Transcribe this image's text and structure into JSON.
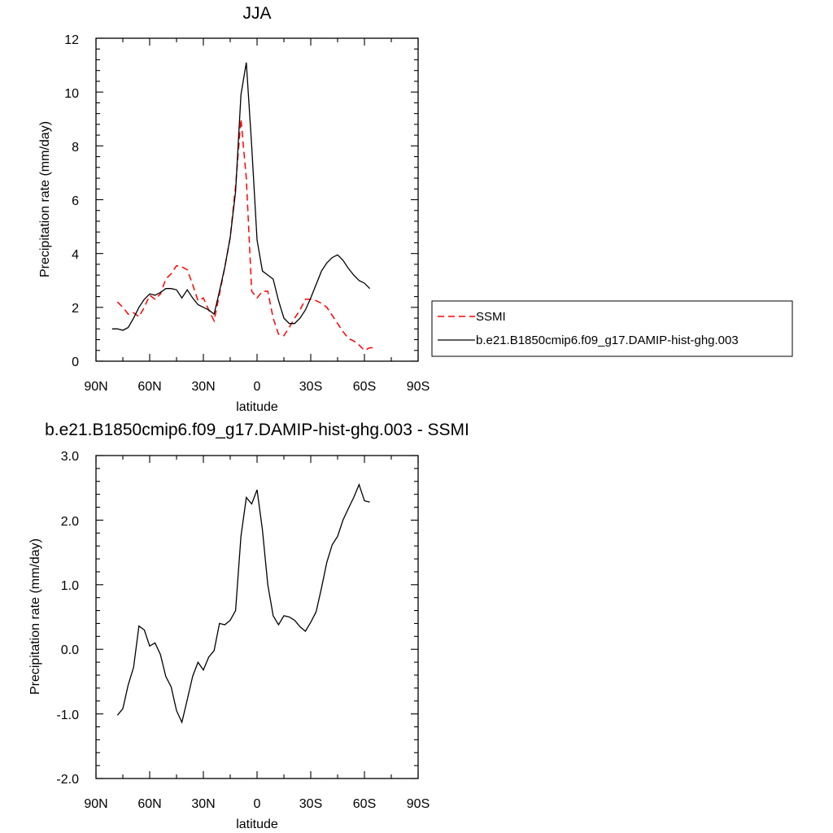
{
  "chart_data": [
    {
      "type": "line",
      "title": "JJA",
      "xlabel": "latitude",
      "ylabel": "Precipitation rate (mm/day)",
      "xlim": [
        90,
        -90
      ],
      "ylim": [
        0,
        12
      ],
      "x_ticks": [
        90,
        60,
        30,
        0,
        -30,
        -60,
        -90
      ],
      "x_tick_labels": [
        "90N",
        "60N",
        "30N",
        "0",
        "30S",
        "60S",
        "90S"
      ],
      "y_ticks": [
        0,
        2,
        4,
        6,
        8,
        10,
        12
      ],
      "y_tick_labels": [
        "0",
        "2",
        "4",
        "6",
        "8",
        "10",
        "12"
      ],
      "legend": {
        "placement": "right-outside"
      },
      "series": [
        {
          "name": "SSMI",
          "color": "#ff0000",
          "style": "dashed",
          "x": [
            78,
            75,
            72,
            69,
            66,
            63,
            60,
            57,
            54,
            51,
            48,
            45,
            42,
            39,
            36,
            33,
            30,
            27,
            24,
            21,
            18,
            15,
            12,
            9,
            6,
            3,
            0,
            -3,
            -6,
            -9,
            -12,
            -15,
            -18,
            -21,
            -24,
            -27,
            -30,
            -33,
            -36,
            -39,
            -42,
            -45,
            -48,
            -51,
            -54,
            -57,
            -60,
            -63,
            -66
          ],
          "y": [
            2.2,
            2.0,
            1.75,
            1.8,
            1.65,
            2.0,
            2.45,
            2.3,
            2.5,
            3.05,
            3.25,
            3.55,
            3.5,
            3.4,
            2.85,
            2.25,
            2.35,
            1.9,
            1.5,
            2.5,
            3.5,
            4.6,
            6.5,
            9.0,
            6.8,
            2.6,
            2.35,
            2.6,
            2.6,
            1.6,
            1.0,
            0.95,
            1.25,
            1.6,
            1.9,
            2.3,
            2.3,
            2.25,
            2.15,
            2.0,
            1.7,
            1.4,
            1.1,
            0.85,
            0.75,
            0.6,
            0.4,
            0.5,
            0.5
          ]
        },
        {
          "name": "b.e21.B1850cmip6.f09_g17.DAMIP-hist-ghg.003",
          "color": "#000000",
          "style": "solid",
          "x": [
            81,
            78,
            75,
            72,
            69,
            66,
            63,
            60,
            57,
            54,
            51,
            48,
            45,
            42,
            39,
            36,
            33,
            30,
            27,
            24,
            21,
            18,
            15,
            12,
            9,
            6,
            3,
            0,
            -3,
            -6,
            -9,
            -12,
            -15,
            -18,
            -21,
            -24,
            -27,
            -30,
            -33,
            -36,
            -39,
            -42,
            -45,
            -48,
            -51,
            -54,
            -57,
            -60,
            -63
          ],
          "y": [
            1.2,
            1.2,
            1.15,
            1.25,
            1.6,
            2.0,
            2.3,
            2.5,
            2.45,
            2.55,
            2.7,
            2.7,
            2.65,
            2.35,
            2.65,
            2.35,
            2.1,
            2.0,
            1.9,
            1.75,
            2.6,
            3.5,
            4.6,
            6.3,
            9.9,
            11.1,
            8.0,
            4.5,
            3.35,
            3.2,
            3.05,
            2.25,
            1.6,
            1.4,
            1.4,
            1.6,
            1.9,
            2.35,
            2.85,
            3.35,
            3.65,
            3.85,
            3.95,
            3.75,
            3.45,
            3.2,
            3.0,
            2.9,
            2.7
          ]
        }
      ]
    },
    {
      "type": "line",
      "title": "b.e21.B1850cmip6.f09_g17.DAMIP-hist-ghg.003 - SSMI",
      "xlabel": "latitude",
      "ylabel": "Precipitation rate (mm/day)",
      "xlim": [
        90,
        -90
      ],
      "ylim": [
        -2.0,
        3.0
      ],
      "x_ticks": [
        90,
        60,
        30,
        0,
        -30,
        -60,
        -90
      ],
      "x_tick_labels": [
        "90N",
        "60N",
        "30N",
        "0",
        "30S",
        "60S",
        "90S"
      ],
      "y_ticks": [
        -2,
        -1,
        0,
        1,
        2,
        3
      ],
      "y_tick_labels": [
        "-2.0",
        "-1.0",
        "0.0",
        "1.0",
        "2.0",
        "3.0"
      ],
      "series": [
        {
          "color": "#000000",
          "style": "solid",
          "x": [
            78,
            75,
            72,
            69,
            66,
            63,
            60,
            57,
            54,
            51,
            48,
            45,
            42,
            39,
            36,
            33,
            30,
            27,
            24,
            21,
            18,
            15,
            12,
            9,
            6,
            3,
            0,
            -3,
            -6,
            -9,
            -12,
            -15,
            -18,
            -21,
            -24,
            -27,
            -30,
            -33,
            -36,
            -39,
            -42,
            -45,
            -48,
            -51,
            -54,
            -57,
            -60,
            -63
          ],
          "y": [
            -1.02,
            -0.92,
            -0.55,
            -0.28,
            0.36,
            0.3,
            0.05,
            0.1,
            -0.08,
            -0.42,
            -0.58,
            -0.95,
            -1.13,
            -0.78,
            -0.42,
            -0.2,
            -0.32,
            -0.12,
            -0.02,
            0.4,
            0.38,
            0.45,
            0.6,
            1.75,
            2.35,
            2.25,
            2.47,
            1.85,
            1.0,
            0.52,
            0.38,
            0.52,
            0.5,
            0.45,
            0.35,
            0.28,
            0.42,
            0.58,
            0.95,
            1.35,
            1.62,
            1.75,
            2.0,
            2.18,
            2.35,
            2.55,
            2.3,
            2.28
          ]
        }
      ]
    }
  ]
}
